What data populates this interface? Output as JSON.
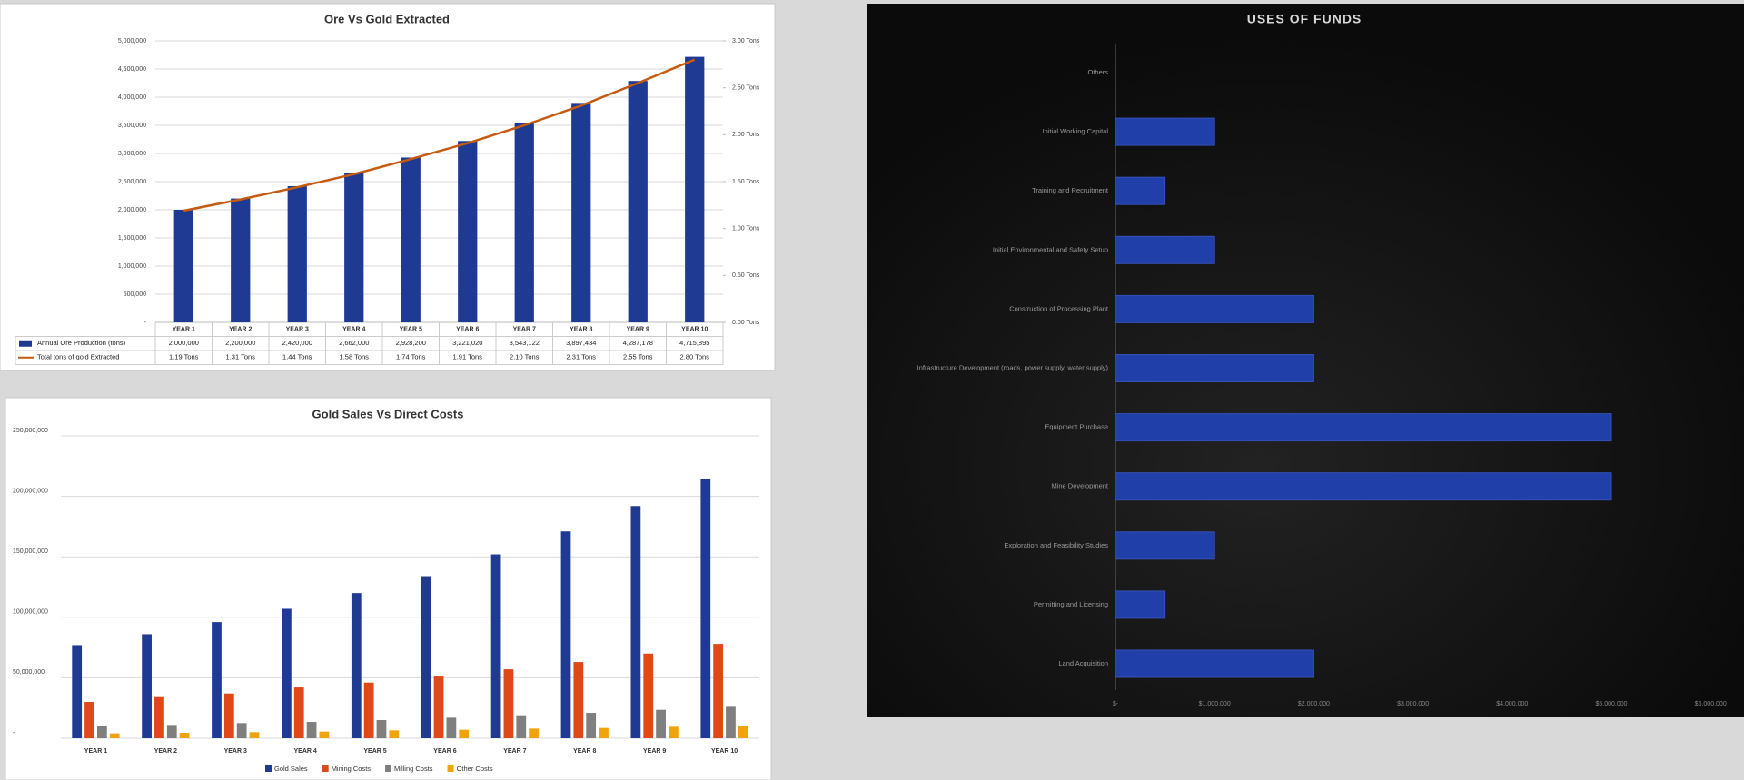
{
  "chart_data": [
    {
      "type": "combo",
      "title": "Ore Vs  Gold Extracted",
      "categories": [
        "YEAR 1",
        "YEAR 2",
        "YEAR 3",
        "YEAR 4",
        "YEAR 5",
        "YEAR 6",
        "YEAR 7",
        "YEAR 8",
        "YEAR 9",
        "YEAR 10"
      ],
      "series": [
        {
          "name": "Annual Ore Production (tons)",
          "color": "#1f3a93",
          "mark": "bar",
          "values": [
            2000000,
            2200000,
            2420000,
            2662000,
            2928200,
            3221020,
            3543122,
            3897434,
            4287178,
            4715895
          ],
          "value_labels": [
            "2,000,000",
            "2,200,000",
            "2,420,000",
            "2,662,000",
            "2,928,200",
            "3,221,020",
            "3,543,122",
            "3,897,434",
            "4,287,178",
            "4,715,895"
          ]
        },
        {
          "name": "Total tons of gold Extracted",
          "color": "#c55a11",
          "mark": "line",
          "axis": "y2",
          "values": [
            1.19,
            1.31,
            1.44,
            1.58,
            1.74,
            1.91,
            2.1,
            2.31,
            2.55,
            2.8
          ],
          "value_labels": [
            "1.19 Tons",
            "1.31 Tons",
            "1.44 Tons",
            "1.58 Tons",
            "1.74 Tons",
            "1.91 Tons",
            "2.10 Tons",
            "2.31 Tons",
            "2.55 Tons",
            "2.80 Tons"
          ]
        }
      ],
      "ylim": [
        0,
        5000000
      ],
      "yticks": [
        {
          "value": 0,
          "label": "-"
        },
        {
          "value": 500000,
          "label": "500,000"
        },
        {
          "value": 1000000,
          "label": "1,000,000"
        },
        {
          "value": 1500000,
          "label": "1,500,000"
        },
        {
          "value": 2000000,
          "label": "2,000,000"
        },
        {
          "value": 2500000,
          "label": "2,500,000"
        },
        {
          "value": 3000000,
          "label": "3,000,000"
        },
        {
          "value": 3500000,
          "label": "3,500,000"
        },
        {
          "value": 4000000,
          "label": "4,000,000"
        },
        {
          "value": 4500000,
          "label": "4,500,000"
        },
        {
          "value": 5000000,
          "label": "5,000,000"
        }
      ],
      "y2lim": [
        0,
        3
      ],
      "y2ticks": [
        {
          "value": 0,
          "label": "0.00 Tons"
        },
        {
          "value": 0.5,
          "label": "0.50 Tons"
        },
        {
          "value": 1,
          "label": "1.00 Tons"
        },
        {
          "value": 1.5,
          "label": "1.50 Tons"
        },
        {
          "value": 2,
          "label": "2.00 Tons"
        },
        {
          "value": 2.5,
          "label": "2.50 Tons"
        },
        {
          "value": 3,
          "label": "3.00 Tons"
        }
      ],
      "grid": true
    },
    {
      "type": "bar",
      "title": "Gold Sales Vs Direct Costs",
      "categories": [
        "YEAR 1",
        "YEAR 2",
        "YEAR 3",
        "YEAR 4",
        "YEAR 5",
        "YEAR 6",
        "YEAR 7",
        "YEAR 8",
        "YEAR 9",
        "YEAR 10"
      ],
      "series": [
        {
          "name": "Gold Sales",
          "color": "#1f3a93",
          "values": [
            77000000,
            86000000,
            96000000,
            107000000,
            120000000,
            134000000,
            152000000,
            171000000,
            192000000,
            214000000
          ]
        },
        {
          "name": "Mining Costs",
          "color": "#e0481a",
          "values": [
            30000000,
            34000000,
            37000000,
            42000000,
            46000000,
            51000000,
            57000000,
            63000000,
            70000000,
            78000000
          ]
        },
        {
          "name": "Milling Costs",
          "color": "#7f7f7f",
          "values": [
            10000000,
            11000000,
            12500000,
            13500000,
            15000000,
            17000000,
            19000000,
            21000000,
            23500000,
            26000000
          ]
        },
        {
          "name": "Other Costs",
          "color": "#f0a30a",
          "values": [
            4000000,
            4500000,
            5000000,
            5500000,
            6500000,
            7000000,
            8000000,
            8500000,
            9500000,
            10500000
          ]
        }
      ],
      "ylim": [
        0,
        250000000
      ],
      "yticks": [
        {
          "value": 0,
          "label": "-"
        },
        {
          "value": 50000000,
          "label": "50,000,000"
        },
        {
          "value": 100000000,
          "label": "100,000,000"
        },
        {
          "value": 150000000,
          "label": "150,000,000"
        },
        {
          "value": 200000000,
          "label": "200,000,000"
        },
        {
          "value": 250000000,
          "label": "250,000,000"
        }
      ],
      "grid": true,
      "legend": "bottom"
    },
    {
      "type": "barh",
      "title": "USES OF FUNDS",
      "categories": [
        "Land Acquisition",
        "Permitting and Licensing",
        "Exploration and Feasibility Studies",
        "Mine Development",
        "Equipment Purchase",
        "Infrastructure Development (roads, power supply, water supply)",
        "Construction of Processing Plant",
        "Initial Environmental and Safety Setup",
        "Training and Recruitment",
        "Initial Working Capital",
        "Others"
      ],
      "values": [
        2000000,
        500000,
        1000000,
        5000000,
        5000000,
        2000000,
        2000000,
        1000000,
        500000,
        1000000,
        0
      ],
      "color": "#213fa8",
      "xlim": [
        0,
        6000000
      ],
      "xticks": [
        {
          "value": 0,
          "label": "$-"
        },
        {
          "value": 1000000,
          "label": "$1,000,000"
        },
        {
          "value": 2000000,
          "label": "$2,000,000"
        },
        {
          "value": 3000000,
          "label": "$3,000,000"
        },
        {
          "value": 4000000,
          "label": "$4,000,000"
        },
        {
          "value": 5000000,
          "label": "$5,000,000"
        },
        {
          "value": 6000000,
          "label": "$6,000,000"
        }
      ],
      "grid": false
    }
  ]
}
